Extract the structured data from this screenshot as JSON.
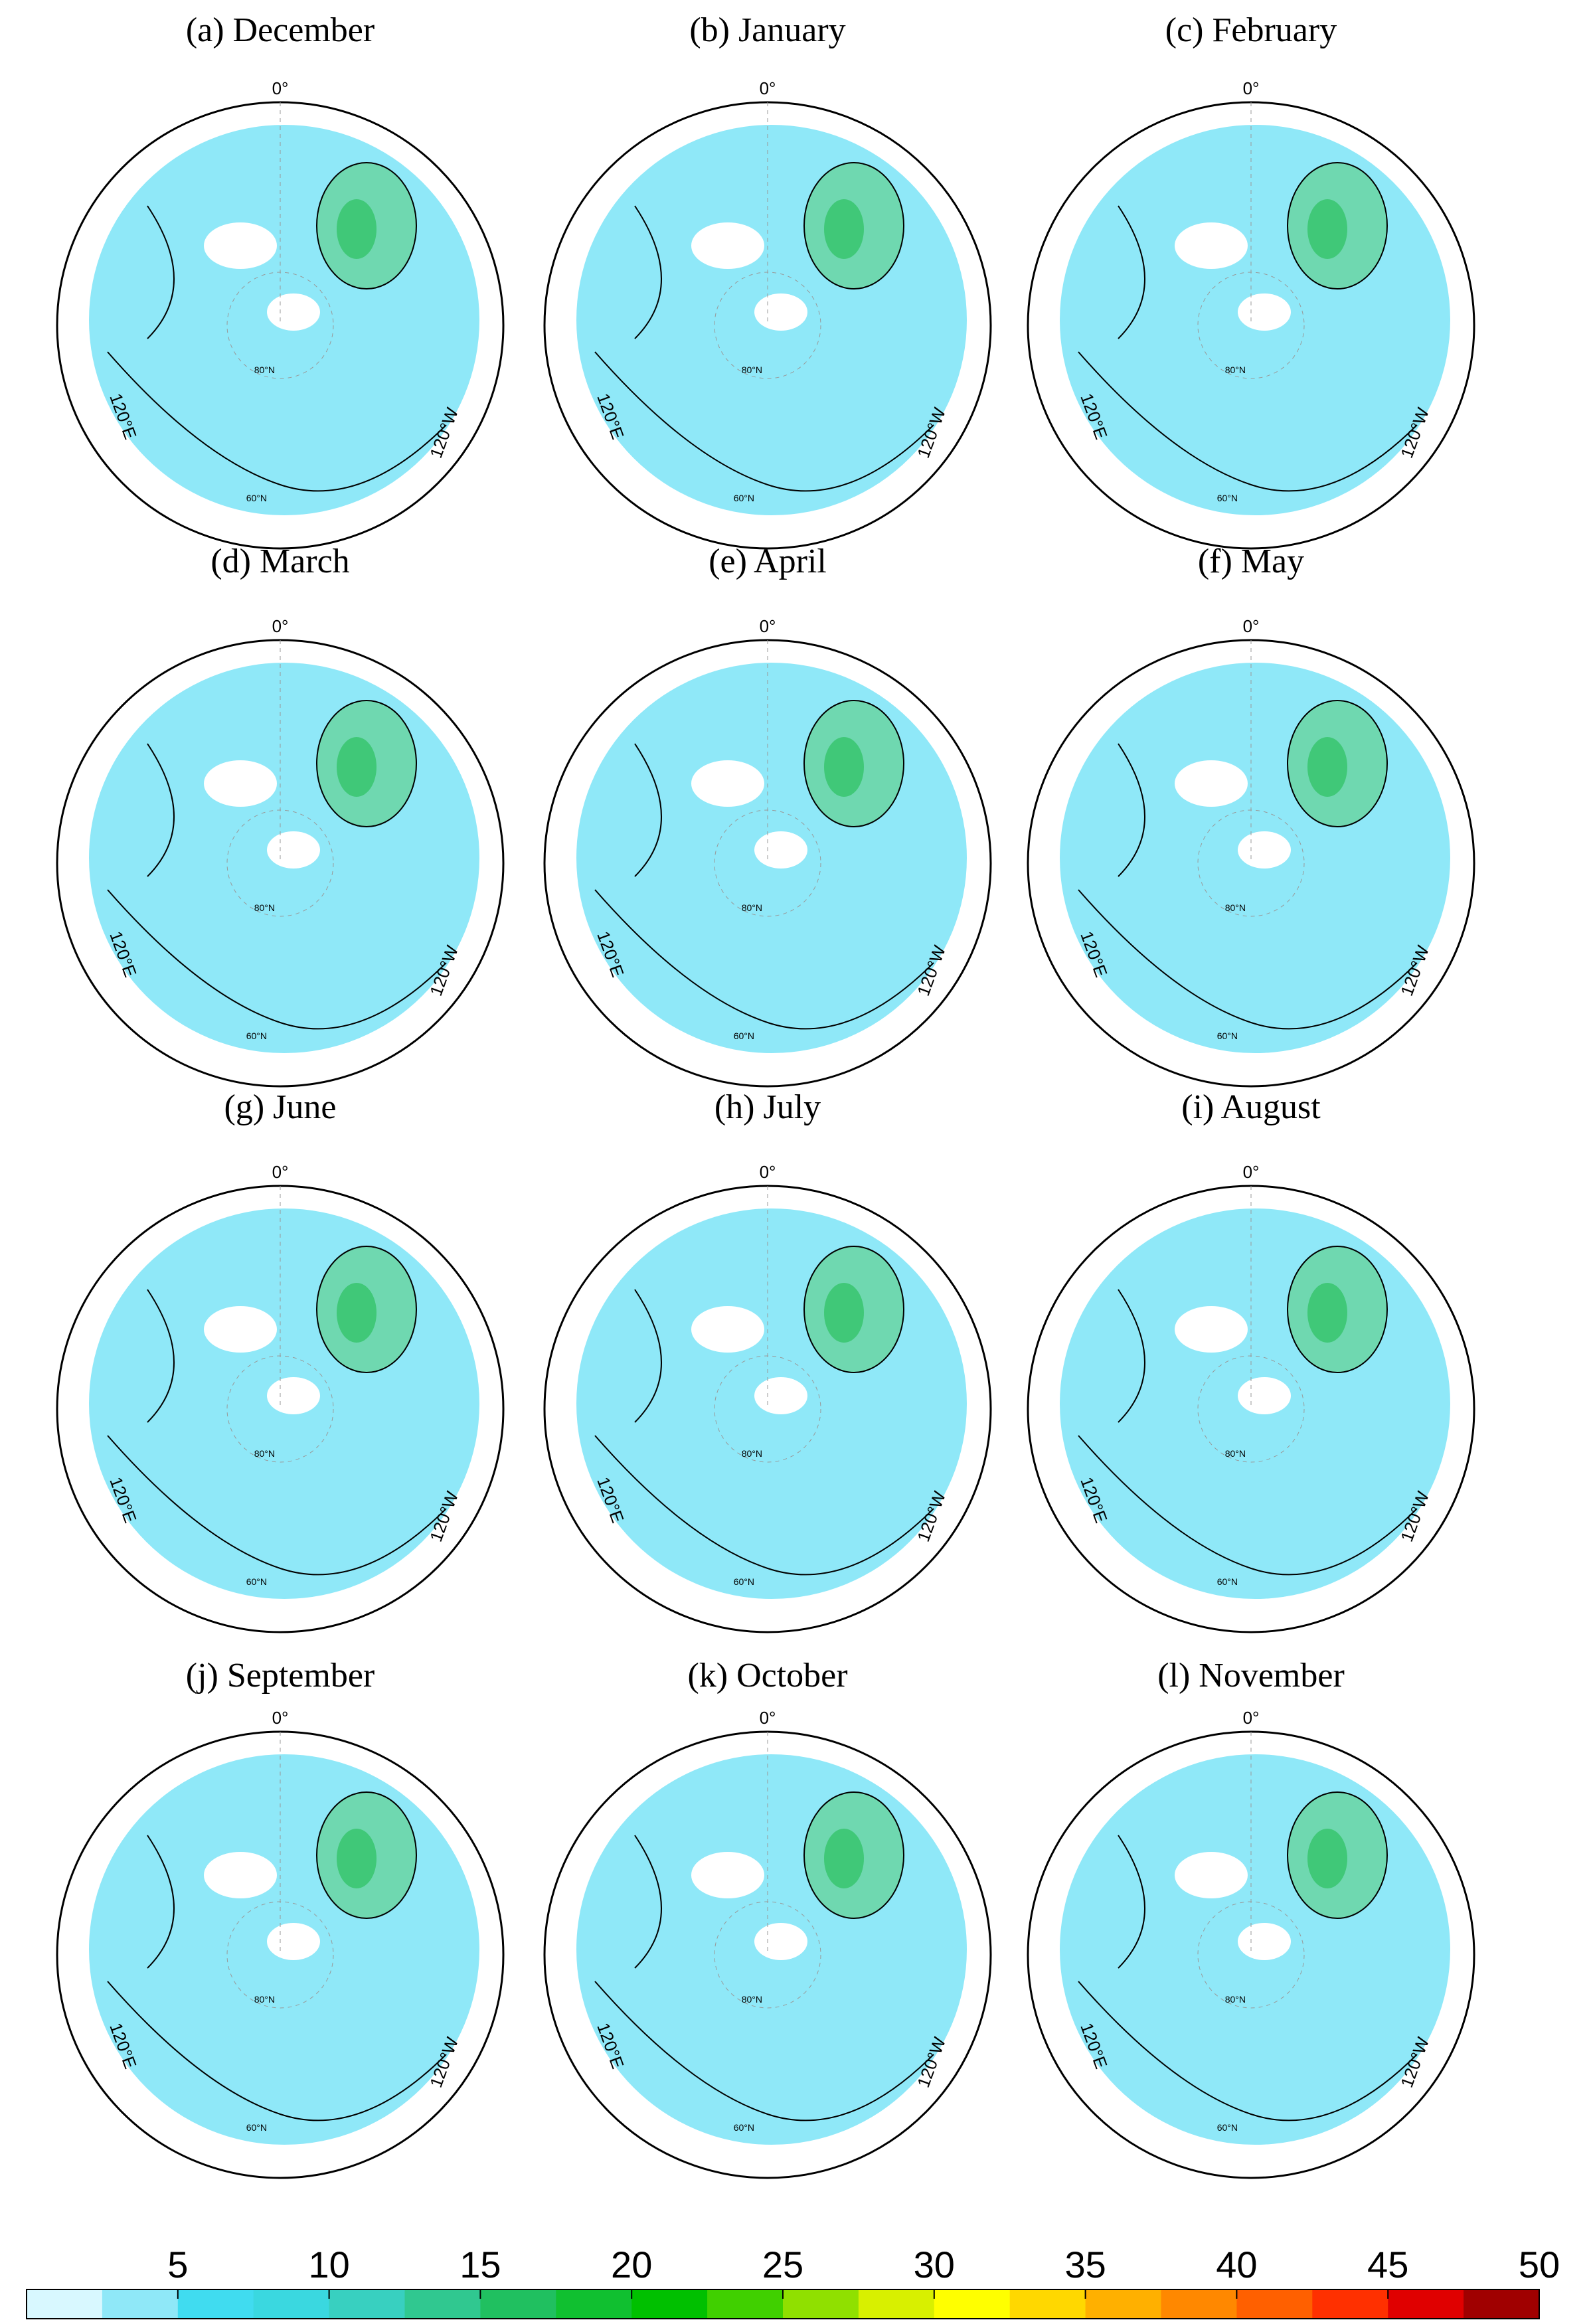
{
  "panels": [
    {
      "title": "(a) December"
    },
    {
      "title": "(b) January"
    },
    {
      "title": "(c) February"
    },
    {
      "title": "(d) March"
    },
    {
      "title": "(e) April"
    },
    {
      "title": "(f) May"
    },
    {
      "title": "(g) June"
    },
    {
      "title": "(h) July"
    },
    {
      "title": "(i) August"
    },
    {
      "title": "(j) September"
    },
    {
      "title": "(k) October"
    },
    {
      "title": "(l) November"
    }
  ],
  "map_labels": {
    "lon0": "0°",
    "lon120e": "120°E",
    "lon120w": "120°W",
    "lat80": "80°N",
    "lat60": "60°N"
  },
  "colorbar": {
    "lim": [
      0,
      50
    ],
    "ticks": [
      5,
      10,
      15,
      20,
      25,
      30,
      35,
      40,
      45,
      50
    ],
    "colors": [
      "#d8f8ff",
      "#8fe8f8",
      "#40dcf0",
      "#3ad8e0",
      "#38d0c0",
      "#30c890",
      "#20c060",
      "#10c030",
      "#00c000",
      "#40d000",
      "#90e000",
      "#d8f000",
      "#ffff00",
      "#ffd800",
      "#ffb000",
      "#ff8800",
      "#ff6000",
      "#ff3000",
      "#e00000",
      "#a00000"
    ]
  }
}
